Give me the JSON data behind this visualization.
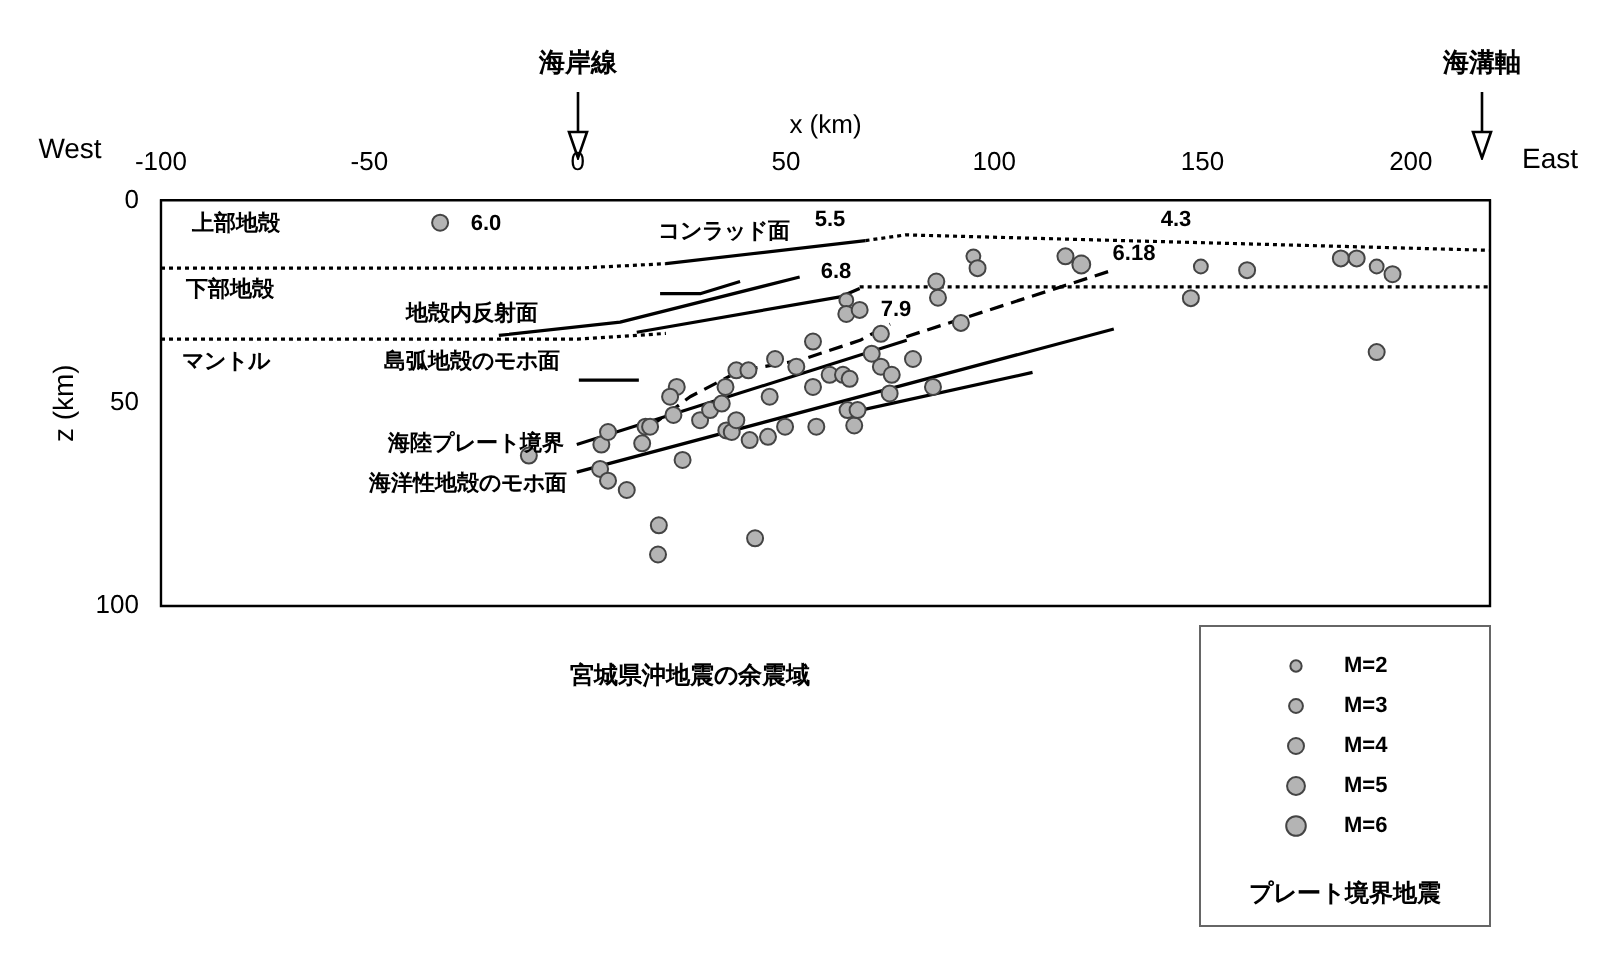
{
  "chart_data": {
    "type": "bubble",
    "xlabel": "x (km)",
    "ylabel": "z (km)",
    "xlim": [
      -100,
      219
    ],
    "xticks": [
      -100,
      -50,
      0,
      50,
      100,
      150,
      200
    ],
    "ylim": [
      100,
      0
    ],
    "yticks": [
      0,
      50,
      100
    ],
    "grid": false,
    "legend_title": "プレート境界地震",
    "size_legend": [
      {
        "value": 2,
        "label": "M=2"
      },
      {
        "value": 3,
        "label": "M=3"
      },
      {
        "value": 4,
        "label": "M=4"
      },
      {
        "value": 5,
        "label": "M=5"
      },
      {
        "value": 6,
        "label": "M=6"
      }
    ],
    "annotations": [
      "West",
      "East",
      "宮城県沖地震の余震域",
      "海岸線",
      "海溝軸",
      "上部地殻",
      "下部地殻",
      "マントル",
      "6.0",
      "5.5",
      "4.3",
      "6.8",
      "7.9",
      "6.18",
      "コンラッド面",
      "地殻内反射面",
      "島弧地殻のモホ面",
      "海陸プレート境界",
      "海洋性地殻のモホ面"
    ],
    "series": [
      {
        "color": "#b4b4b4",
        "x": [
          -33,
          95.0,
          96.0,
          117.1,
          120.9,
          149.6,
          160.7,
          147.2,
          183.2,
          187.0,
          191.8,
          195.6,
          191.8,
          5.7,
          7.3,
          5.4,
          7.3,
          11.8,
          15.5,
          16.3,
          17.4,
          19.5,
          19.3,
          25.2,
          23.8,
          22.2,
          23.0,
          29.4,
          31.8,
          34.6,
          35.7,
          37.0,
          38.1,
          35.5,
          38.1,
          41.0,
          46.1,
          41.3,
          45.7,
          49.8,
          42.6,
          47.4,
          52.5,
          56.5,
          57.3,
          60.5,
          63.7,
          65.3,
          64.5,
          64.5,
          67.7,
          64.8,
          66.4,
          67.2,
          72.8,
          74.9,
          75.4,
          80.5,
          85.3,
          92.0,
          70.6,
          -11.7,
          86.1,
          86.5,
          72.8,
          56.5
        ],
        "values": [
          5.5,
          13.8,
          16.7,
          13.8,
          15.8,
          16.3,
          17.2,
          24.1,
          14.3,
          14.3,
          16.3,
          18.2,
          37.4,
          60.2,
          57.1,
          66.2,
          69.1,
          71.4,
          59.9,
          55.8,
          55.8,
          80.1,
          87.3,
          64.0,
          46.0,
          48.4,
          52.9,
          54.2,
          51.7,
          50.1,
          56.7,
          57.1,
          54.2,
          46.0,
          41.9,
          41.9,
          48.4,
          59.1,
          58.3,
          55.8,
          83.3,
          39.1,
          41.0,
          46.0,
          55.8,
          43.0,
          43.0,
          44.0,
          24.6,
          28.0,
          27.0,
          51.7,
          55.5,
          51.7,
          41.0,
          47.6,
          43.0,
          39.1,
          46.0,
          30.2,
          37.8,
          62.9,
          20.0,
          24.0,
          32.9,
          34.8
        ],
        "sizes": [
          4,
          3,
          4,
          4,
          5,
          3,
          4,
          4,
          4,
          4,
          3,
          4,
          4,
          4,
          4,
          4,
          4,
          4,
          4,
          4,
          4,
          4,
          4,
          4,
          4,
          4,
          4,
          4,
          4,
          4,
          4,
          4,
          4,
          4,
          4,
          4,
          4,
          4,
          4,
          4,
          4,
          4,
          4,
          4,
          4,
          4,
          4,
          4,
          3,
          4,
          4,
          4,
          4,
          4,
          4,
          4,
          4,
          4,
          4,
          4,
          4,
          4,
          4,
          4,
          4,
          4
        ]
      },
      {
        "type": "line",
        "color": "#000000",
        "line_style": "dotted",
        "x": [
          -100,
          0,
          21.2
        ],
        "values": [
          16.7,
          16.7,
          15.6
        ]
      },
      {
        "type": "line",
        "color": "#000000",
        "line_style": "solid",
        "x": [
          21.2,
          69.1
        ],
        "values": [
          15.6,
          9.9
        ]
      },
      {
        "type": "line",
        "color": "#000000",
        "line_style": "dotted",
        "x": [
          69.1,
          78.7,
          219
        ],
        "values": [
          9.9,
          8.5,
          12.3
        ]
      },
      {
        "type": "line",
        "color": "#000000",
        "line_style": "dotted",
        "x": [
          -100,
          0,
          21.2
        ],
        "values": [
          34.2,
          34.2,
          32.8
        ]
      },
      {
        "type": "line",
        "color": "#000000",
        "line_style": "solid",
        "x": [
          14.2,
          63,
          67.7
        ],
        "values": [
          32.5,
          23.8,
          21.7
        ]
      },
      {
        "type": "line",
        "color": "#000000",
        "line_style": "dotted",
        "x": [
          67.7,
          219
        ],
        "values": [
          21.3,
          21.3
        ]
      },
      {
        "type": "line",
        "color": "#000000",
        "line_style": "solid",
        "x": [
          -18.9,
          10.2,
          53.3
        ],
        "values": [
          33.3,
          30,
          18.9
        ]
      },
      {
        "type": "line",
        "color": "#000000",
        "line_style": "solid",
        "x": [
          19.8,
          29.4,
          39
        ],
        "values": [
          23,
          23,
          20
        ]
      },
      {
        "type": "line",
        "color": "#000000",
        "line_style": "solid",
        "x": [
          0.3,
          14.7
        ],
        "values": [
          44.3,
          44.3
        ]
      },
      {
        "type": "line",
        "color": "#000000",
        "line_style": "solid",
        "x": [
          -0.2,
          79
        ],
        "values": [
          60.2,
          34.5
        ]
      },
      {
        "type": "line",
        "color": "#000000",
        "line_style": "dashed",
        "x": [
          78.9,
          128.4
        ],
        "values": [
          33.6,
          17.2
        ]
      },
      {
        "type": "line",
        "color": "#000000",
        "line_style": "solid",
        "x": [
          -0.2,
          128.7
        ],
        "values": [
          67,
          31.7
        ]
      },
      {
        "type": "line",
        "color": "#000000",
        "line_style": "solid",
        "x": [
          64.5,
          109.2
        ],
        "values": [
          52.5,
          42.4
        ]
      },
      {
        "type": "line",
        "color": "#000000",
        "line_style": "dashed",
        "x": [
          17.4,
          27,
          39,
          53.4,
          67.8,
          75
        ],
        "values": [
          55.8,
          48.4,
          42,
          39.4,
          34.5,
          30.5
        ]
      }
    ]
  }
}
